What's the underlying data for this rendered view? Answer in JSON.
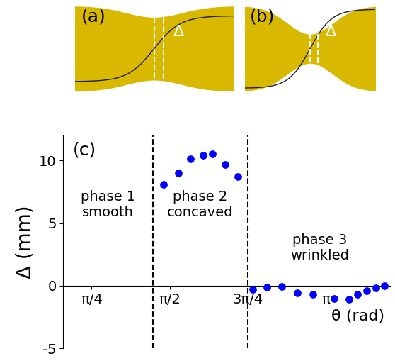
{
  "panels": [
    {
      "label": "(a)",
      "annotation": "Δ"
    },
    {
      "label": "(b)",
      "annotation": "Δ"
    }
  ],
  "chart_data": {
    "type": "scatter",
    "panel_label": "(c)",
    "x_label": "θ (rad)",
    "y_label": "Δ (mm)",
    "x": [
      1.507,
      1.661,
      1.78,
      1.906,
      1.998,
      2.131,
      2.257,
      2.411,
      2.551,
      2.699,
      2.853,
      3.014,
      3.224,
      3.379,
      3.463,
      3.554,
      3.645,
      3.736
    ],
    "values": [
      8.1,
      9.0,
      10.1,
      10.4,
      10.5,
      9.7,
      8.7,
      -0.3,
      -0.1,
      -0.05,
      -0.6,
      -0.7,
      -1.0,
      -1.1,
      -0.7,
      -0.4,
      -0.2,
      0.0
    ],
    "color": "#0000ff",
    "marker": "o",
    "xlim": [
      0.5,
      3.8
    ],
    "xticks": [
      {
        "value": 0.7853981633974483,
        "label": "π/4"
      },
      {
        "value": 1.5707963267948966,
        "label": "π/2"
      },
      {
        "value": 2.356194490192345,
        "label": "3π/4"
      },
      {
        "value": 3.141592653589793,
        "label": "π"
      }
    ],
    "ylim": [
      -5,
      12
    ],
    "yticks": [
      -5,
      0,
      5,
      10
    ],
    "phase_boundaries": [
      1.4,
      2.36
    ],
    "phase_labels": [
      "phase 1\nsmooth",
      "phase 2\nconcaved",
      "phase 3\nwrinkled"
    ]
  }
}
